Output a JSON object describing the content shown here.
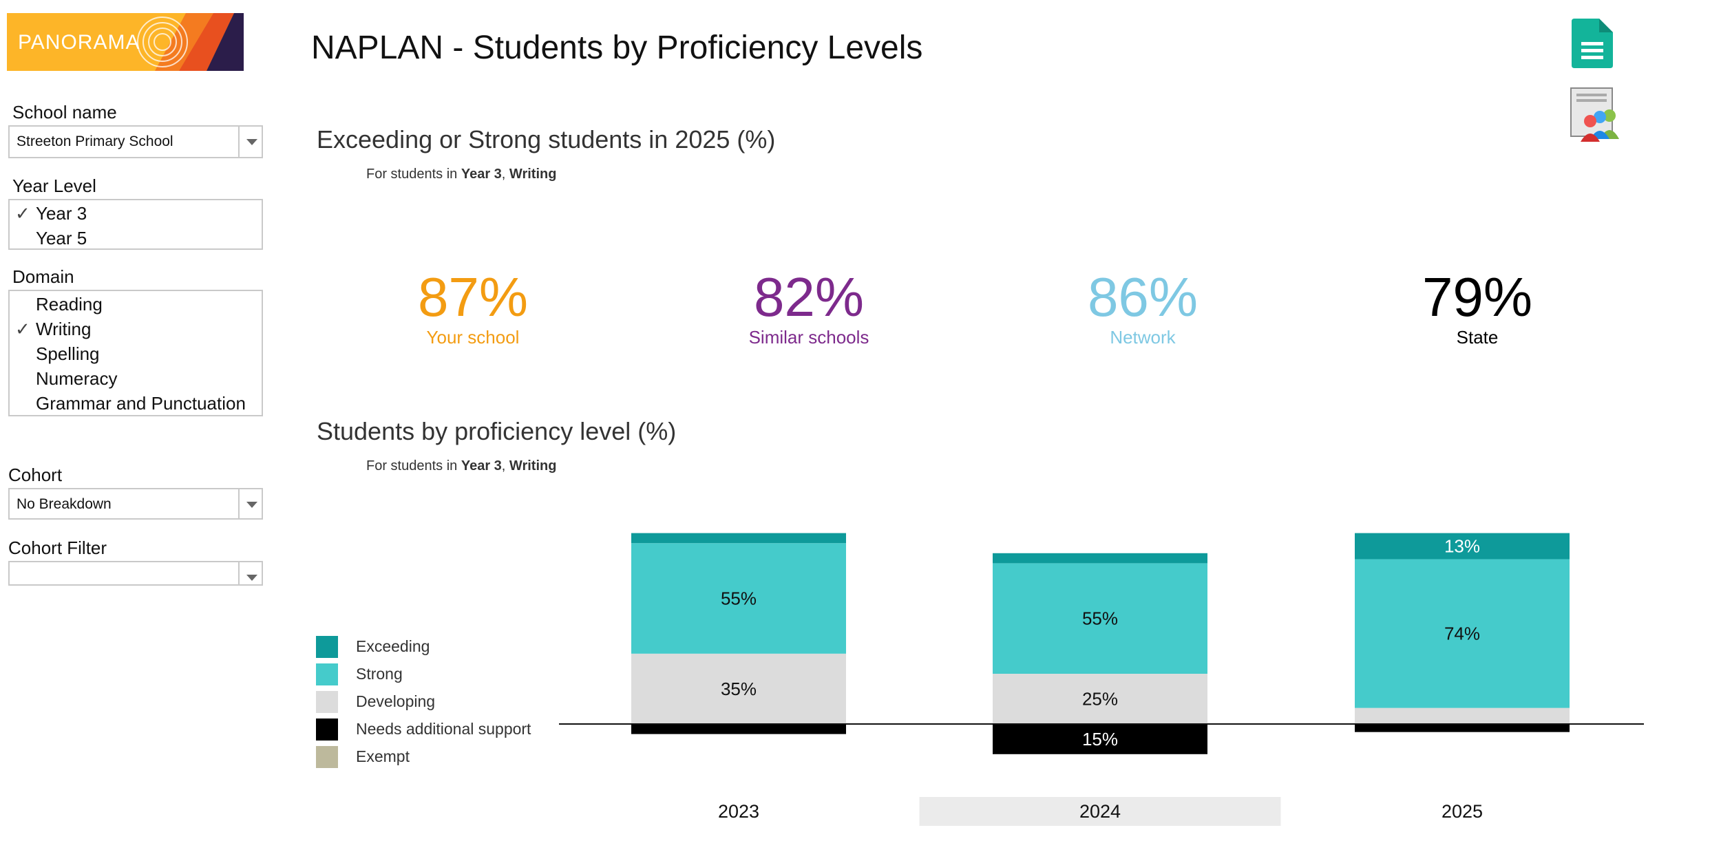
{
  "logo": {
    "text": "PANORAMA"
  },
  "title": "NAPLAN - Students by Proficiency Levels",
  "sidebar": {
    "school_label": "School name",
    "school_value": "Streeton Primary School",
    "year_label": "Year Level",
    "year_options": [
      {
        "label": "Year 3",
        "checked": true
      },
      {
        "label": "Year 5",
        "checked": false
      }
    ],
    "domain_label": "Domain",
    "domain_options": [
      {
        "label": "Reading",
        "checked": false
      },
      {
        "label": "Writing",
        "checked": true
      },
      {
        "label": "Spelling",
        "checked": false
      },
      {
        "label": "Numeracy",
        "checked": false
      },
      {
        "label": "Grammar and Punctuation",
        "checked": false
      }
    ],
    "cohort_label": "Cohort",
    "cohort_value": "No Breakdown",
    "cohort_filter_label": "Cohort Filter",
    "cohort_filter_value": ""
  },
  "section1": {
    "title_a": "Exceeding or Strong students in ",
    "title_year": "2025",
    "title_b": " (%)",
    "sub_prefix": "For students in ",
    "sub_year": "Year 3",
    "sub_sep": ", ",
    "sub_domain": "Writing"
  },
  "kpis": [
    {
      "value": "87%",
      "label": "Your school",
      "color": "#F39C12"
    },
    {
      "value": "82%",
      "label": "Similar schools",
      "color": "#7D2A8C"
    },
    {
      "value": "86%",
      "label": "Network",
      "color": "#7EC8E3"
    },
    {
      "value": "79%",
      "label": "State",
      "color": "#000000"
    }
  ],
  "section2": {
    "title": "Students by proficiency level (%)",
    "sub_prefix": "For students in ",
    "sub_year": "Year 3",
    "sub_sep": ", ",
    "sub_domain": "Writing"
  },
  "legend": [
    {
      "label": "Exceeding",
      "color": "#0E9A9A"
    },
    {
      "label": "Strong",
      "color": "#45CBCB"
    },
    {
      "label": "Developing",
      "color": "#DCDCDC"
    },
    {
      "label": "Needs additional support",
      "color": "#000000"
    },
    {
      "label": "Exempt",
      "color": "#BDB99C"
    }
  ],
  "chart_data": {
    "type": "bar",
    "stacked": true,
    "diverging": true,
    "categories": [
      "2023",
      "2024",
      "2025"
    ],
    "highlighted_category": "2024",
    "series": [
      {
        "name": "Exceeding",
        "color": "#0E9A9A",
        "values": [
          5,
          5,
          13
        ],
        "labels": [
          "",
          "",
          "13%"
        ]
      },
      {
        "name": "Strong",
        "color": "#45CBCB",
        "values": [
          55,
          55,
          74
        ],
        "labels": [
          "55%",
          "55%",
          "74%"
        ]
      },
      {
        "name": "Developing",
        "color": "#DCDCDC",
        "values": [
          35,
          25,
          8
        ],
        "labels": [
          "35%",
          "25%",
          ""
        ]
      },
      {
        "name": "Needs additional support",
        "color": "#000000",
        "values": [
          5,
          15,
          4
        ],
        "labels": [
          "",
          "15%",
          ""
        ],
        "below_baseline": true
      },
      {
        "name": "Exempt",
        "color": "#BDB99C",
        "values": [
          0,
          0,
          0
        ],
        "labels": [
          "",
          "",
          ""
        ]
      }
    ]
  }
}
